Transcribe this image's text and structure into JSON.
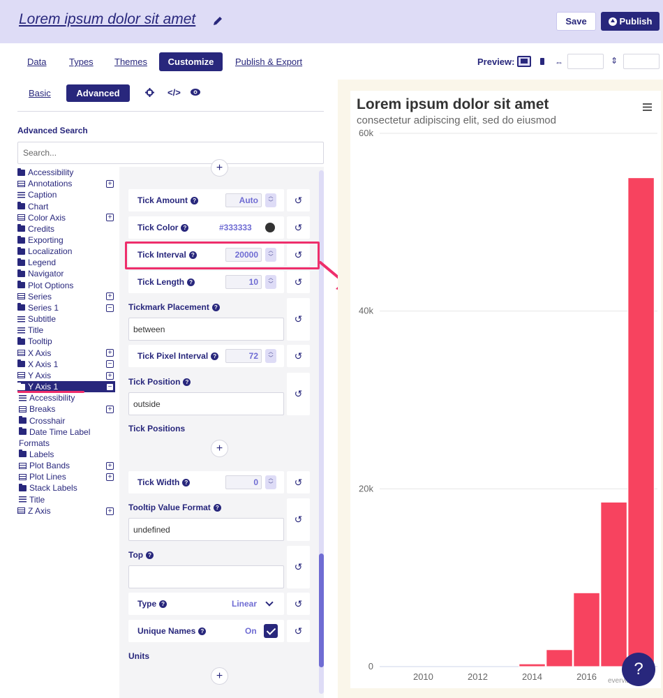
{
  "header": {
    "title": "Lorem ipsum dolor sit amet",
    "save_label": "Save",
    "publish_label": "Publish"
  },
  "tabs": [
    {
      "label": "Data"
    },
    {
      "label": "Types"
    },
    {
      "label": "Themes"
    },
    {
      "label": "Customize",
      "active": true
    },
    {
      "label": "Publish & Export"
    }
  ],
  "preview": {
    "label": "Preview:"
  },
  "subtabs": {
    "basic": "Basic",
    "advanced": "Advanced"
  },
  "advanced_search": {
    "label": "Advanced Search",
    "placeholder": "Search..."
  },
  "tree": [
    {
      "label": "Accessibility",
      "icon": "folder-icon"
    },
    {
      "label": "Annotations",
      "icon": "table-icon",
      "toggle": "+"
    },
    {
      "label": "Caption",
      "icon": "sliders-icon"
    },
    {
      "label": "Chart",
      "icon": "folder-icon"
    },
    {
      "label": "Color Axis",
      "icon": "table-icon",
      "toggle": "+"
    },
    {
      "label": "Credits",
      "icon": "folder-icon"
    },
    {
      "label": "Exporting",
      "icon": "folder-icon"
    },
    {
      "label": "Localization",
      "icon": "folder-icon"
    },
    {
      "label": "Legend",
      "icon": "folder-icon"
    },
    {
      "label": "Navigator",
      "icon": "folder-icon"
    },
    {
      "label": "Plot Options",
      "icon": "folder-icon"
    },
    {
      "label": "Series",
      "icon": "table-icon",
      "toggle": "+"
    },
    {
      "label": "Series 1",
      "icon": "folder-icon",
      "toggle": "−"
    },
    {
      "label": "Subtitle",
      "icon": "sliders-icon"
    },
    {
      "label": "Title",
      "icon": "sliders-icon"
    },
    {
      "label": "Tooltip",
      "icon": "folder-icon"
    },
    {
      "label": "X Axis",
      "icon": "table-icon",
      "toggle": "+"
    },
    {
      "label": "X Axis 1",
      "icon": "folder-icon",
      "toggle": "−"
    },
    {
      "label": "Y Axis",
      "icon": "table-icon",
      "toggle": "+"
    },
    {
      "label": "Y Axis 1",
      "icon": "folder-open-icon",
      "toggle": "−",
      "selected": true
    },
    {
      "label": "Accessibility",
      "icon": "sliders-icon",
      "child": true
    },
    {
      "label": "Breaks",
      "icon": "table-icon",
      "toggle": "+",
      "child": true
    },
    {
      "label": "Crosshair",
      "icon": "folder-icon",
      "child": true
    },
    {
      "label": "Date Time Label",
      "icon": "folder-icon",
      "child": true
    },
    {
      "label": "Formats",
      "icon": "",
      "child": true
    },
    {
      "label": "Labels",
      "icon": "folder-icon",
      "child": true
    },
    {
      "label": "Plot Bands",
      "icon": "table-icon",
      "toggle": "+",
      "child": true
    },
    {
      "label": "Plot Lines",
      "icon": "table-icon",
      "toggle": "+",
      "child": true
    },
    {
      "label": "Stack Labels",
      "icon": "folder-icon",
      "child": true
    },
    {
      "label": "Title",
      "icon": "sliders-icon",
      "child": true
    },
    {
      "label": "Z Axis",
      "icon": "table-icon",
      "toggle": "+"
    }
  ],
  "options": {
    "tick_amount": {
      "label": "Tick Amount",
      "value": "Auto"
    },
    "tick_color": {
      "label": "Tick Color",
      "value": "#333333"
    },
    "tick_interval": {
      "label": "Tick Interval",
      "value": "20000"
    },
    "tick_length": {
      "label": "Tick Length",
      "value": "10"
    },
    "tickmark_placement": {
      "label": "Tickmark Placement",
      "value": "between"
    },
    "tick_pixel_interval": {
      "label": "Tick Pixel Interval",
      "value": "72"
    },
    "tick_position": {
      "label": "Tick Position",
      "value": "outside"
    },
    "tick_positions": {
      "label": "Tick Positions"
    },
    "tick_width": {
      "label": "Tick Width",
      "value": "0"
    },
    "tooltip_value_format": {
      "label": "Tooltip Value Format",
      "value": "undefined"
    },
    "top": {
      "label": "Top",
      "value": ""
    },
    "type": {
      "label": "Type",
      "value": "Linear"
    },
    "unique_names": {
      "label": "Unique Names",
      "value": "On"
    },
    "units": {
      "label": "Units"
    }
  },
  "colors": {
    "accent": "#28277c",
    "highlight": "#ee2e6b",
    "bar": "#f7435f"
  },
  "chart_data": {
    "type": "bar",
    "title": "Lorem ipsum dolor sit amet",
    "subtitle": "consectetur adipiscing elit, sed do eiusmod",
    "x_tick_labels": [
      "2010",
      "2012",
      "2014",
      "2016"
    ],
    "x": [
      2014,
      2015,
      2016,
      2017,
      2018
    ],
    "values": [
      300,
      1900,
      8300,
      18500,
      55000
    ],
    "y_tick_labels": [
      "0",
      "20k",
      "40k",
      "60k"
    ],
    "ylim": [
      0,
      60000
    ],
    "xlim": [
      2008.4,
      2018.6
    ],
    "grid": true
  },
  "chart_credits": "everviz",
  "help_label": "?"
}
